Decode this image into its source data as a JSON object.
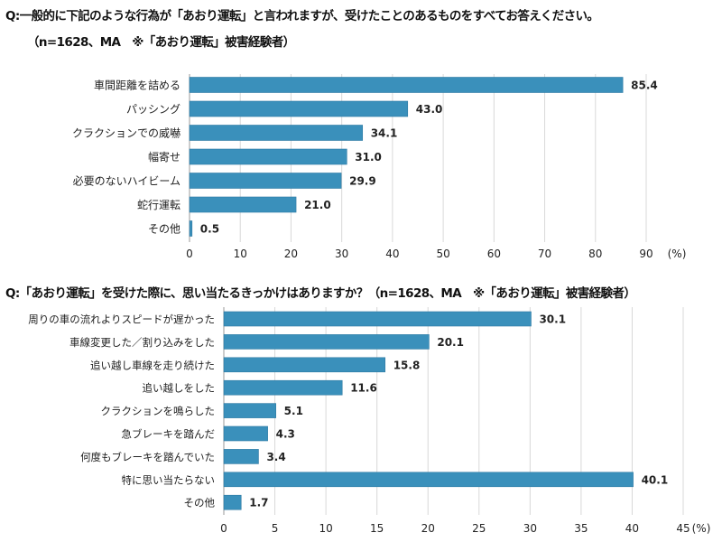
{
  "chart_data": [
    {
      "type": "bar",
      "orientation": "horizontal",
      "title": "Q:一般的に下記のような行為が「あおり運転」と言われますが、受けたことのあるものをすべてお答えください。",
      "subtitle": "（n=1628、MA　※「あおり運転」被害経験者）",
      "categories": [
        "車間距離を詰める",
        "パッシング",
        "クラクションでの威嚇",
        "幅寄せ",
        "必要のないハイビーム",
        "蛇行運転",
        "その他"
      ],
      "values": [
        85.4,
        43.0,
        34.1,
        31.0,
        29.9,
        21.0,
        0.5
      ],
      "value_labels": [
        "85.4",
        "43.0",
        "34.1",
        "31.0",
        "29.9",
        "21.0",
        "0.5"
      ],
      "xlim": [
        0,
        90
      ],
      "xticks": [
        "0",
        "10",
        "20",
        "30",
        "40",
        "50",
        "60",
        "70",
        "80",
        "90"
      ],
      "xlabel": "(%)",
      "grid": true,
      "color": "#3a90bb"
    },
    {
      "type": "bar",
      "orientation": "horizontal",
      "title": "Q:「あおり運転」を受けた際に、思い当たるきっかけはありますか？（n=1628、MA　※「あおり運転」被害経験者）",
      "categories": [
        "周りの車の流れよりスピードが遅かった",
        "車線変更した／割り込みをした",
        "追い越し車線を走り続けた",
        "追い越しをした",
        "クラクションを鳴らした",
        "急ブレーキを踏んだ",
        "何度もブレーキを踏んでいた",
        "特に思い当たらない",
        "その他"
      ],
      "values": [
        30.1,
        20.1,
        15.8,
        11.6,
        5.1,
        4.3,
        3.4,
        40.1,
        1.7
      ],
      "value_labels": [
        "30.1",
        "20.1",
        "15.8",
        "11.6",
        "5.1",
        "4.3",
        "3.4",
        "40.1",
        "1.7"
      ],
      "xlim": [
        0,
        45
      ],
      "xticks": [
        "0",
        "5",
        "10",
        "15",
        "20",
        "25",
        "30",
        "35",
        "40",
        "45"
      ],
      "xlabel": "(%)",
      "grid": true,
      "color": "#3a90bb"
    }
  ]
}
